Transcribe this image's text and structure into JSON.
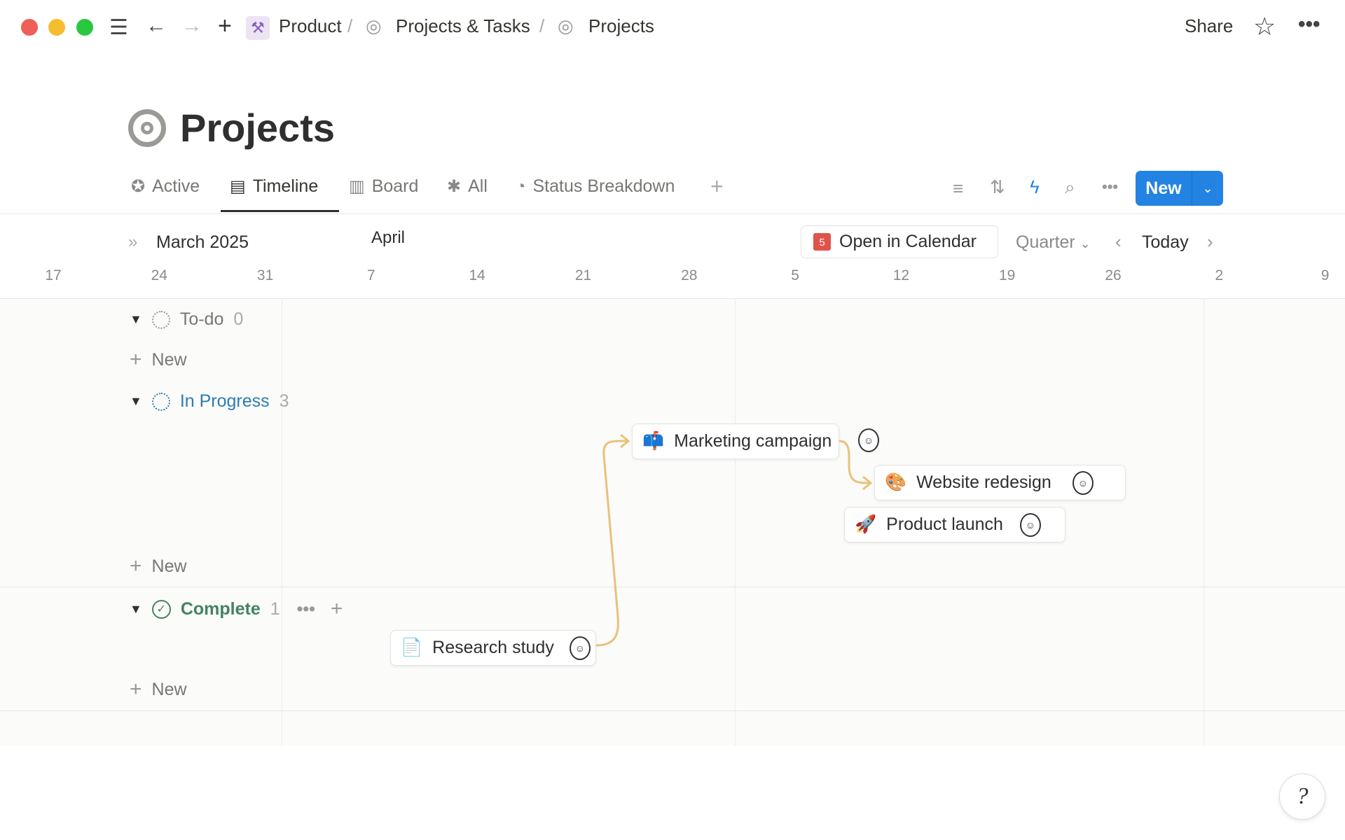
{
  "window": {
    "traffic_lights": [
      "#ee5f57",
      "#f5bd2f",
      "#2ac840"
    ]
  },
  "topbar": {
    "breadcrumbs": [
      {
        "label": "Product"
      },
      {
        "label": "Projects & Tasks"
      },
      {
        "label": "Projects"
      }
    ],
    "separator": "/",
    "share": "Share"
  },
  "page": {
    "title": "Projects"
  },
  "tabs": [
    {
      "label": "Active",
      "icon": "star-badge-icon"
    },
    {
      "label": "Timeline",
      "icon": "timeline-icon",
      "active": true
    },
    {
      "label": "Board",
      "icon": "board-icon"
    },
    {
      "label": "All",
      "icon": "asterisk-icon"
    },
    {
      "label": "Status Breakdown",
      "icon": "pie-icon"
    }
  ],
  "toolbar": {
    "new_label": "New",
    "accent": "#2383e2"
  },
  "timeline": {
    "month1": "March 2025",
    "month2": "April",
    "open_calendar": "Open in Calendar",
    "calendar_day": "5",
    "scale": "Quarter",
    "today": "Today",
    "ticks": [
      "17",
      "24",
      "31",
      "7",
      "14",
      "21",
      "28",
      "5",
      "12",
      "19",
      "26",
      "2",
      "9"
    ]
  },
  "groups": [
    {
      "label": "To-do",
      "count": "0",
      "color": "#787774"
    },
    {
      "label": "In Progress",
      "count": "3",
      "color": "#2e7cb3"
    },
    {
      "label": "Complete",
      "count": "1",
      "color": "#448361"
    }
  ],
  "new_row": "New",
  "cards": [
    {
      "title": "Marketing campaign",
      "emoji": "📫"
    },
    {
      "title": "Website redesign",
      "emoji": "🎨"
    },
    {
      "title": "Product launch",
      "emoji": "🚀"
    },
    {
      "title": "Research study",
      "emoji": "📄"
    }
  ],
  "dependency_color": "#e8c27a"
}
